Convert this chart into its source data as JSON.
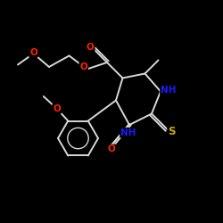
{
  "bg_color": "#000000",
  "bond_color": "#d8d8d8",
  "atom_colors": {
    "O": "#ff2200",
    "N": "#1a1aff",
    "S": "#ccaa00",
    "C": "#d8d8d8"
  },
  "lw": 1.4,
  "fs": 7.5
}
